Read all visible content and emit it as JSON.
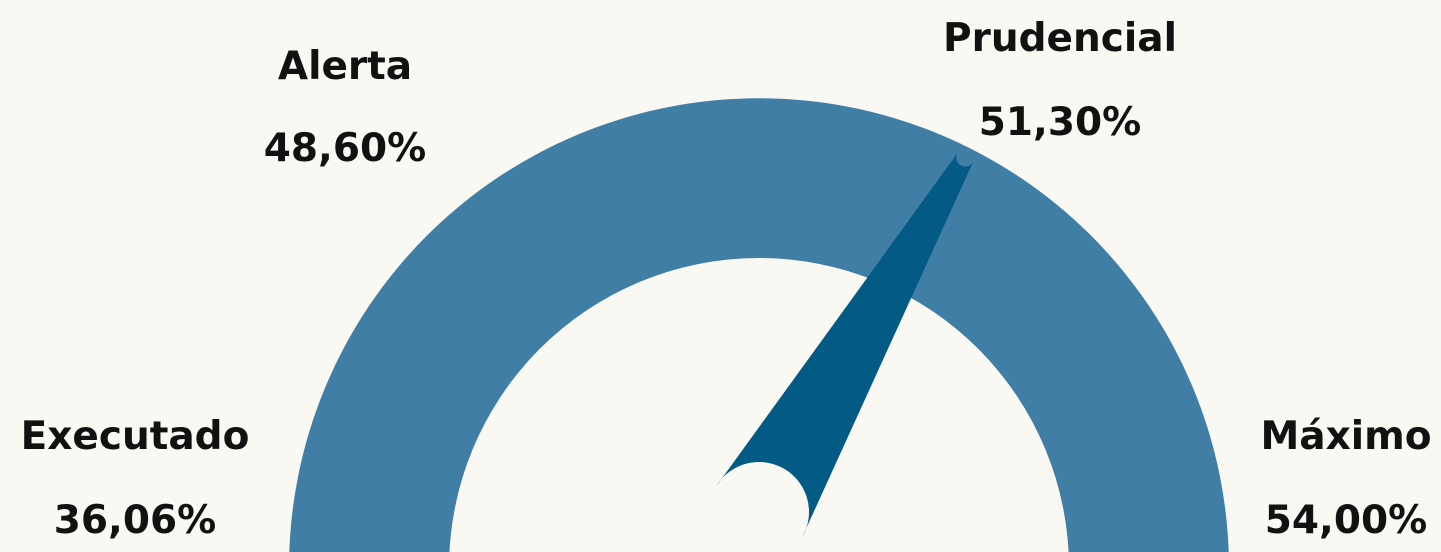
{
  "chart_data": {
    "type": "gauge",
    "unit": "%",
    "min": 0,
    "max": 54.0,
    "value": 36.06,
    "colors": {
      "band": "#407ea5",
      "needle": "#025a85",
      "background": "#faf8f3",
      "text": "#111111"
    },
    "labels": {
      "executado": {
        "name": "Executado",
        "value_text": "36,06%"
      },
      "alerta": {
        "name": "Alerta",
        "value_text": "48,60%"
      },
      "prudencial": {
        "name": "Prudencial",
        "value_text": "51,30%"
      },
      "maximo": {
        "name": "Máximo",
        "value_text": "54,00%"
      }
    }
  }
}
